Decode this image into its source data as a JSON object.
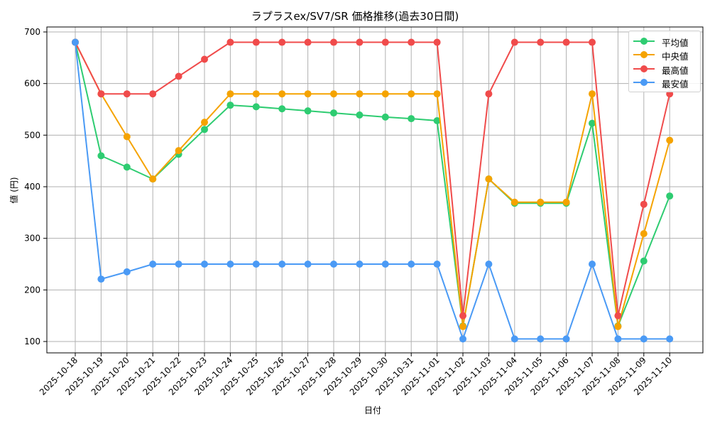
{
  "chart_data": {
    "type": "line",
    "title": "ラプラスex/SV7/SR 価格推移(過去30日間)",
    "xlabel": "日付",
    "ylabel": "値 (円)",
    "ylim": [
      78,
      710
    ],
    "yticks": [
      100,
      200,
      300,
      400,
      500,
      600,
      700
    ],
    "grid": true,
    "legend_position": "upper right",
    "categories": [
      "2025-10-18",
      "2025-10-19",
      "2025-10-20",
      "2025-10-21",
      "2025-10-22",
      "2025-10-23",
      "2025-10-24",
      "2025-10-25",
      "2025-10-26",
      "2025-10-27",
      "2025-10-28",
      "2025-10-29",
      "2025-10-30",
      "2025-10-31",
      "2025-11-01",
      "2025-11-02",
      "2025-11-03",
      "2025-11-04",
      "2025-11-05",
      "2025-11-06",
      "2025-11-07",
      "2025-11-08",
      "2025-11-09",
      "2025-11-10"
    ],
    "series": [
      {
        "name": "平均値",
        "color": "#2ecc71",
        "values": [
          680,
          460,
          438,
          415,
          463,
          511,
          558,
          555,
          551,
          547,
          543,
          539,
          535,
          532,
          528,
          130,
          415,
          368,
          368,
          368,
          523,
          130,
          256,
          382
        ]
      },
      {
        "name": "中央値",
        "color": "#f5a300",
        "values": [
          680,
          580,
          497,
          415,
          470,
          525,
          580,
          580,
          580,
          580,
          580,
          580,
          580,
          580,
          580,
          129,
          415,
          370,
          370,
          370,
          580,
          129,
          309,
          490
        ]
      },
      {
        "name": "最高値",
        "color": "#f04b4b",
        "values": [
          680,
          580,
          580,
          580,
          614,
          647,
          680,
          680,
          680,
          680,
          680,
          680,
          680,
          680,
          680,
          150,
          580,
          680,
          680,
          680,
          680,
          150,
          366,
          580
        ]
      },
      {
        "name": "最安値",
        "color": "#4a9af5",
        "values": [
          680,
          221,
          235,
          250,
          250,
          250,
          250,
          250,
          250,
          250,
          250,
          250,
          250,
          250,
          250,
          105,
          250,
          105,
          105,
          105,
          250,
          105,
          105,
          105
        ]
      }
    ]
  },
  "legend": {
    "items": [
      {
        "label": "平均値",
        "color": "#2ecc71"
      },
      {
        "label": "中央値",
        "color": "#f5a300"
      },
      {
        "label": "最高値",
        "color": "#f04b4b"
      },
      {
        "label": "最安値",
        "color": "#4a9af5"
      }
    ]
  }
}
